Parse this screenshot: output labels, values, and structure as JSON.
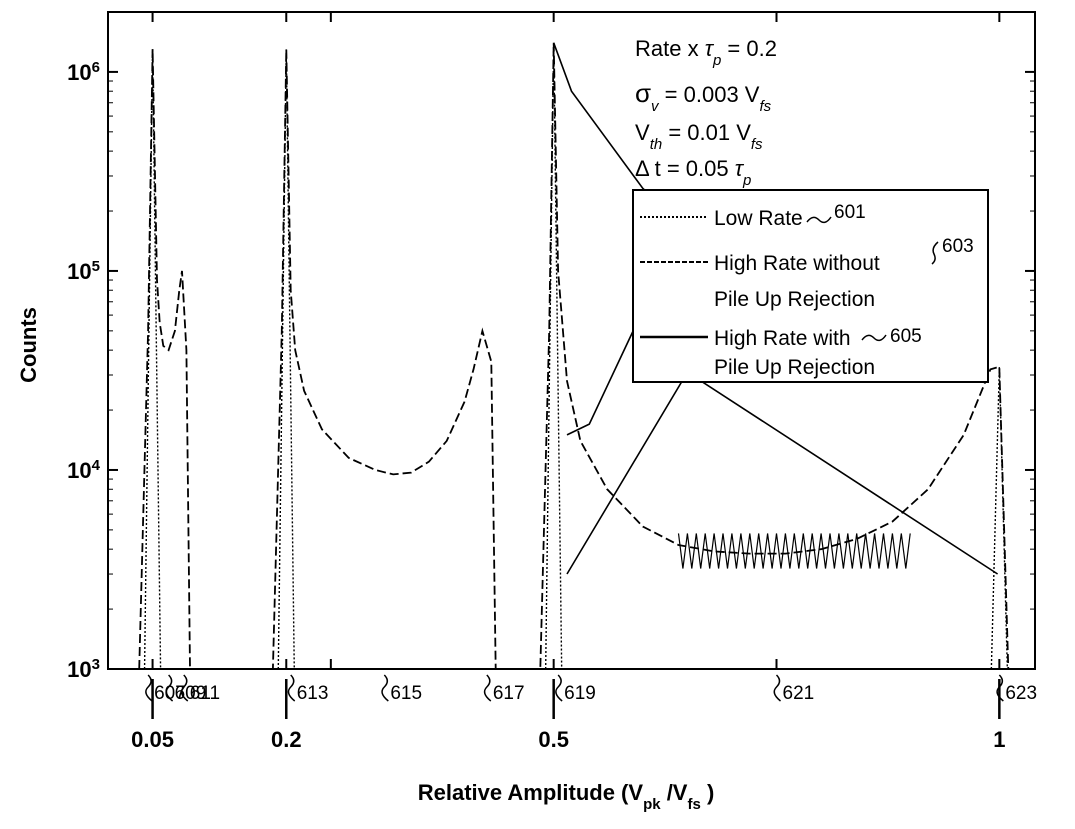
{
  "chart_data": {
    "type": "line",
    "xlabel": "Relative Amplitude (V",
    "xlabel_sub1": "pk",
    "xlabel_mid": " /V",
    "xlabel_sub2": "fs",
    "xlabel_end": " )",
    "ylabel": "Counts",
    "yscale": "log",
    "ylim": [
      1000,
      2000000
    ],
    "xlim": [
      0,
      1.04
    ],
    "y_ticks": [
      {
        "base": "10",
        "exp": "3",
        "value": 1000
      },
      {
        "base": "10",
        "exp": "4",
        "value": 10000
      },
      {
        "base": "10",
        "exp": "5",
        "value": 100000
      },
      {
        "base": "10",
        "exp": "6",
        "value": 1000000
      }
    ],
    "x_ticks": [
      {
        "label": "0.05",
        "value": 0.05
      },
      {
        "label": "0.2",
        "value": 0.2
      },
      {
        "label": "0.5",
        "value": 0.5
      },
      {
        "label": "1",
        "value": 1
      }
    ],
    "conditions": [
      {
        "pre": "Rate x ",
        "sym": "τ",
        "sub": "p",
        "post": " = 0.2"
      },
      {
        "pre": "",
        "sym": "σ",
        "sub": "v",
        "post": " = 0.003 V",
        "sub2": "fs"
      },
      {
        "pre": "V",
        "sym": "",
        "sub": "th",
        "post": " = 0.01 V",
        "sub2": "fs"
      },
      {
        "pre": "Δ t = 0.05 ",
        "sym": "τ",
        "sub": "p",
        "post": ""
      }
    ],
    "legend_position": "top-right",
    "legend": [
      {
        "line1": "Low Rate",
        "line2": "",
        "ref": "601",
        "style": "dotted"
      },
      {
        "line1": "High Rate without",
        "line2": "Pile Up Rejection",
        "ref": "603",
        "style": "dashed"
      },
      {
        "line1": "High Rate with",
        "line2": "Pile Up Rejection",
        "ref": "605",
        "style": "solid"
      }
    ],
    "series": [
      {
        "ref": "603",
        "style": "dashed",
        "points": [
          [
            0.035,
            1000
          ],
          [
            0.045,
            50000
          ],
          [
            0.05,
            1300000
          ],
          [
            0.055,
            90000
          ],
          [
            0.058,
            55000
          ],
          [
            0.062,
            42000
          ],
          [
            0.068,
            40000
          ],
          [
            0.075,
            50000
          ],
          [
            0.08,
            80000
          ],
          [
            0.083,
            100000
          ],
          [
            0.088,
            40000
          ],
          [
            0.092,
            1000
          ],
          [
            0.185,
            1000
          ],
          [
            0.195,
            50000
          ],
          [
            0.2,
            1300000
          ],
          [
            0.205,
            80000
          ],
          [
            0.21,
            40000
          ],
          [
            0.22,
            25000
          ],
          [
            0.24,
            16000
          ],
          [
            0.27,
            11500
          ],
          [
            0.3,
            10000
          ],
          [
            0.32,
            9500
          ],
          [
            0.34,
            9700
          ],
          [
            0.36,
            11000
          ],
          [
            0.38,
            14000
          ],
          [
            0.4,
            22000
          ],
          [
            0.41,
            32000
          ],
          [
            0.42,
            50000
          ],
          [
            0.43,
            35000
          ],
          [
            0.435,
            1000
          ],
          [
            0.485,
            1000
          ],
          [
            0.495,
            50000
          ],
          [
            0.5,
            1400000
          ],
          [
            0.505,
            100000
          ],
          [
            0.515,
            28000
          ],
          [
            0.53,
            14000
          ],
          [
            0.56,
            8000
          ],
          [
            0.6,
            5200
          ],
          [
            0.64,
            4200
          ],
          [
            0.68,
            3900
          ],
          [
            0.72,
            3800
          ],
          [
            0.76,
            3800
          ],
          [
            0.8,
            4000
          ],
          [
            0.84,
            4500
          ],
          [
            0.88,
            5500
          ],
          [
            0.92,
            8000
          ],
          [
            0.96,
            15000
          ],
          [
            0.99,
            32000
          ],
          [
            1.0,
            33000
          ],
          [
            1.01,
            1000
          ]
        ]
      },
      {
        "ref": "605",
        "style": "solid",
        "points": [
          [
            0.5,
            1400000
          ],
          [
            0.52,
            800000
          ],
          [
            0.6,
            260000
          ],
          [
            0.645,
            170000
          ],
          [
            0.54,
            17000
          ],
          [
            0.515,
            15000
          ]
        ]
      },
      {
        "ref": "605b",
        "style": "solid",
        "points": [
          [
            0.515,
            3000
          ],
          [
            0.65,
            31000
          ],
          [
            0.998,
            3000
          ]
        ]
      }
    ],
    "oscillation": {
      "from": 0.64,
      "to": 0.9,
      "low": 3200,
      "high": 4800
    },
    "annotations": [
      {
        "ref": "607",
        "x": 0.045
      },
      {
        "ref": "609",
        "x": 0.068
      },
      {
        "ref": "611",
        "x": 0.085
      },
      {
        "ref": "613",
        "x": 0.205
      },
      {
        "ref": "615",
        "x": 0.31
      },
      {
        "ref": "617",
        "x": 0.425
      },
      {
        "ref": "619",
        "x": 0.505
      },
      {
        "ref": "621",
        "x": 0.75
      },
      {
        "ref": "623",
        "x": 1.0
      }
    ]
  }
}
